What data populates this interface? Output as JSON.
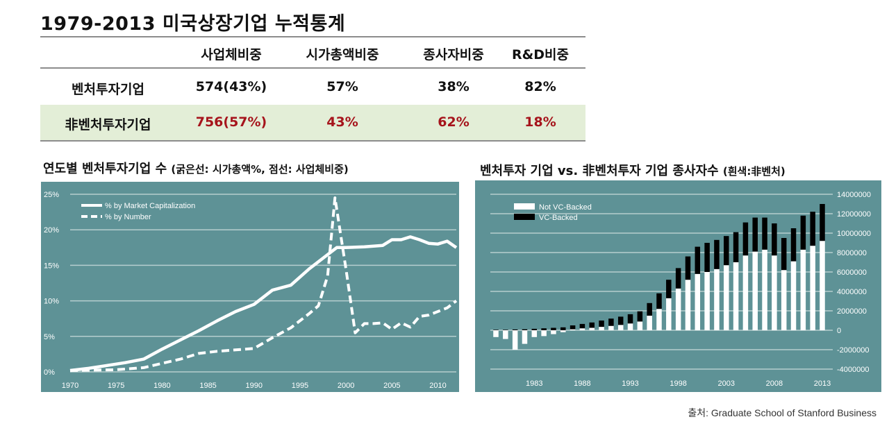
{
  "title": "1979-2013 미국상장기업 누적통계",
  "table": {
    "headers": [
      "사업체비중",
      "시가총액비중",
      "종사자비중",
      "R&D비중"
    ],
    "rows": [
      {
        "label": "벤처투자기업",
        "values": [
          "574(43%)",
          "57%",
          "38%",
          "82%"
        ]
      },
      {
        "label": "非벤처투자기업",
        "values": [
          "756(57%)",
          "43%",
          "62%",
          "18%"
        ]
      }
    ]
  },
  "left_chart_heading": "연도별 벤처투자기업 수",
  "left_chart_note": "(굵은선: 시가총액%, 점선: 사업체비중)",
  "right_chart_heading": "벤처투자 기업 vs. 非벤처투자 기업 종사자수",
  "right_chart_note": "(흰색:非벤처)",
  "source": "출처: Graduate School of Stanford Business",
  "colors": {
    "panel": "#5e9296",
    "red_text": "#a6141c",
    "row_highlight": "#e3eed7"
  },
  "chart_data": [
    {
      "type": "line",
      "xlim": [
        1970,
        2012
      ],
      "ylim": [
        0,
        25
      ],
      "x_ticks": [
        "1970",
        "1975",
        "1980",
        "1985",
        "1990",
        "1995",
        "2000",
        "2005",
        "2010"
      ],
      "y_ticks": [
        "0%",
        "5%",
        "10%",
        "15%",
        "20%",
        "25%"
      ],
      "series": [
        {
          "name": "% by Market Capitalization",
          "style": "solid",
          "x": [
            1970,
            1972,
            1974,
            1976,
            1978,
            1980,
            1982,
            1984,
            1986,
            1988,
            1990,
            1992,
            1994,
            1996,
            1998,
            1999,
            2000,
            2002,
            2004,
            2005,
            2006,
            2007,
            2008,
            2009,
            2010,
            2011,
            2012
          ],
          "y": [
            0.2,
            0.5,
            0.9,
            1.3,
            1.8,
            3.2,
            4.5,
            5.8,
            7.2,
            8.5,
            9.5,
            11.5,
            12.2,
            14.5,
            16.5,
            17.5,
            17.5,
            17.6,
            17.8,
            18.6,
            18.6,
            19.0,
            18.6,
            18.1,
            18.0,
            18.4,
            17.5
          ]
        },
        {
          "name": "% by Number",
          "style": "dashed",
          "x": [
            1970,
            1975,
            1978,
            1980,
            1982,
            1984,
            1986,
            1988,
            1990,
            1992,
            1994,
            1996,
            1997,
            1998,
            1998.8,
            2000,
            2001,
            2002,
            2003,
            2004,
            2005,
            2006,
            2007,
            2008,
            2009,
            2010,
            2011,
            2012
          ],
          "y": [
            0.2,
            0.3,
            0.6,
            1.2,
            1.8,
            2.6,
            2.9,
            3.1,
            3.3,
            4.8,
            6.2,
            8.2,
            9.3,
            13.5,
            24.5,
            14.5,
            5.5,
            6.8,
            6.8,
            6.9,
            6.0,
            6.9,
            6.3,
            7.8,
            8.0,
            8.5,
            9.0,
            10.0
          ]
        }
      ]
    },
    {
      "type": "bar",
      "ylim": [
        -4000000,
        14000000
      ],
      "y_ticks": [
        "14000000",
        "12000000",
        "10000000",
        "8000000",
        "6000000",
        "4000000",
        "2000000",
        "0",
        "-2000000",
        "-4000000"
      ],
      "x_ticks": [
        "1983",
        "1988",
        "1993",
        "1998",
        "2003",
        "2008",
        "2013"
      ],
      "categories": [
        1979,
        1980,
        1981,
        1982,
        1983,
        1984,
        1985,
        1986,
        1987,
        1988,
        1989,
        1990,
        1991,
        1992,
        1993,
        1994,
        1995,
        1996,
        1997,
        1998,
        1999,
        2000,
        2001,
        2002,
        2003,
        2004,
        2005,
        2006,
        2007,
        2008,
        2009,
        2010,
        2011,
        2012,
        2013
      ],
      "series": [
        {
          "name": "Not VC-Backed",
          "values": [
            -700000,
            -900000,
            -2000000,
            -1400000,
            -700000,
            -600000,
            -400000,
            -200000,
            100000,
            200000,
            250000,
            350000,
            450000,
            550000,
            700000,
            900000,
            1500000,
            2200000,
            3300000,
            4300000,
            5200000,
            5800000,
            6000000,
            6300000,
            6700000,
            7000000,
            7700000,
            8100000,
            8300000,
            7700000,
            6200000,
            7100000,
            8300000,
            8700000,
            9200000
          ]
        },
        {
          "name": "VC-Backed",
          "values": [
            50000,
            50000,
            80000,
            100000,
            150000,
            200000,
            250000,
            300000,
            400000,
            450000,
            550000,
            650000,
            750000,
            850000,
            950000,
            1050000,
            1300000,
            1600000,
            1900000,
            2100000,
            2400000,
            2800000,
            3000000,
            3000000,
            3000000,
            3100000,
            3400000,
            3500000,
            3300000,
            3300000,
            3300000,
            3400000,
            3500000,
            3500000,
            3800000
          ]
        }
      ]
    }
  ]
}
